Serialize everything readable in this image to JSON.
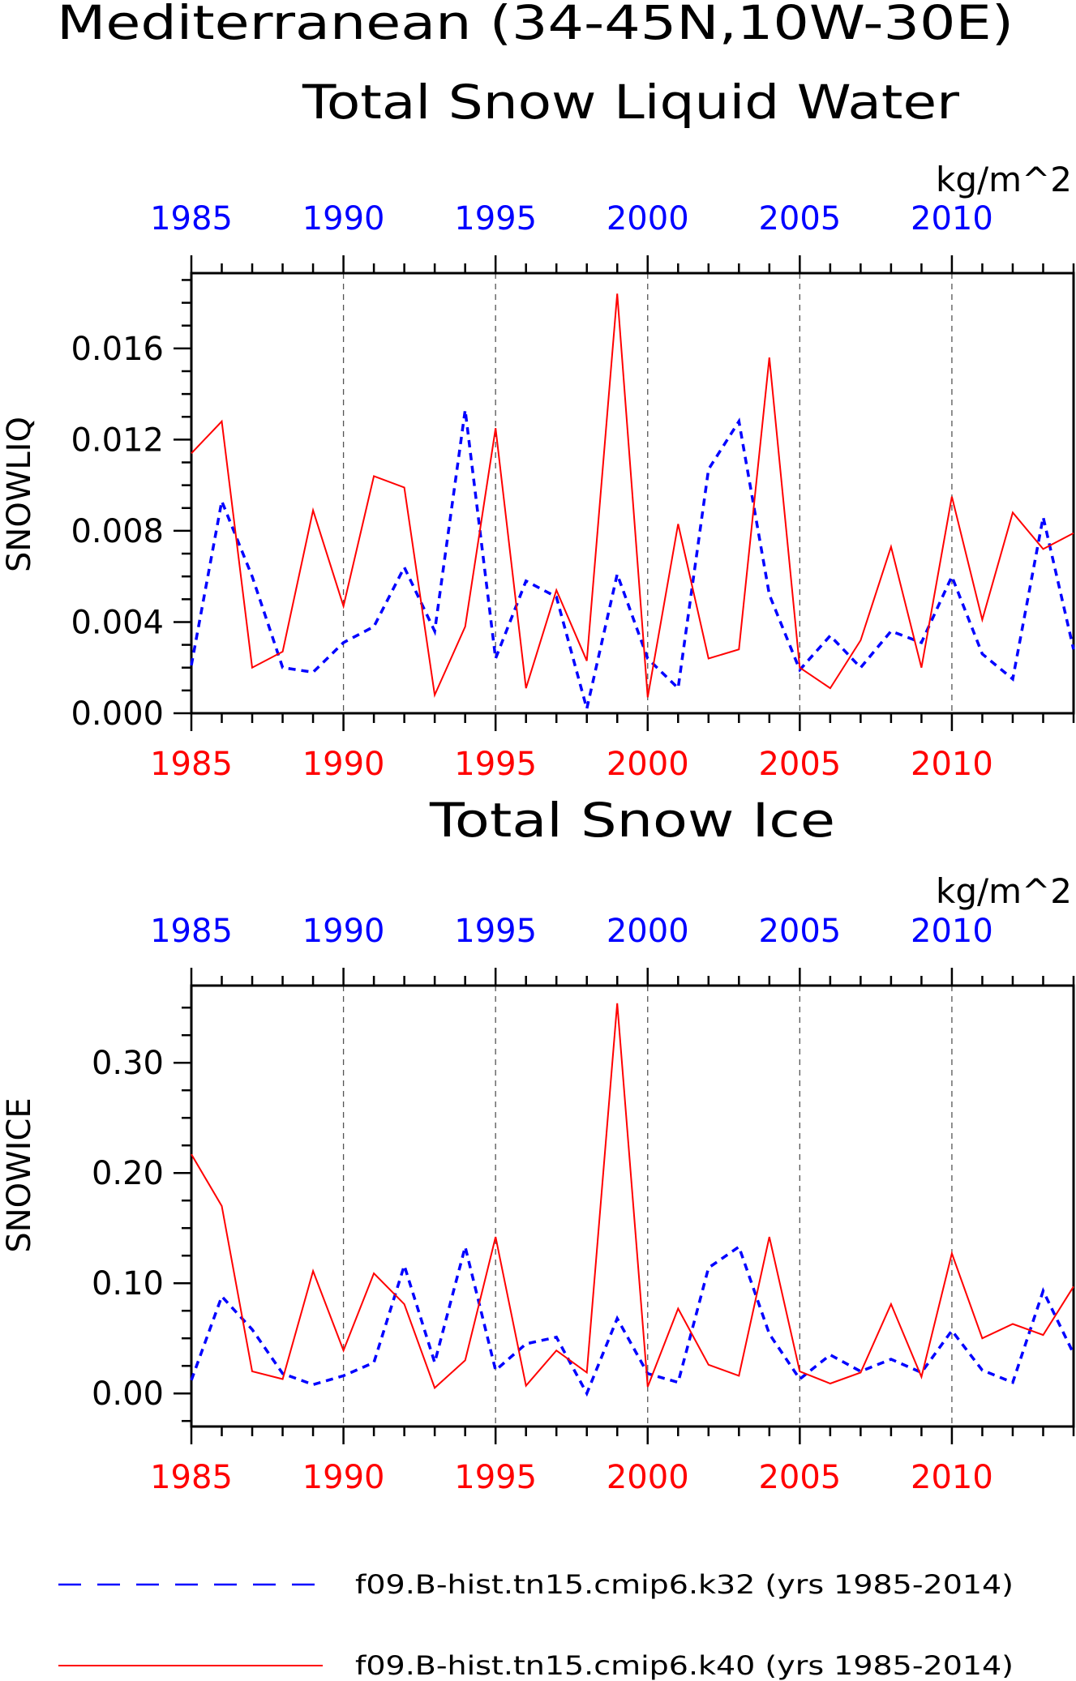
{
  "header": {
    "title_line1": "Mediterranean (34-45N,10W-30E)"
  },
  "colors": {
    "k32": "#0000ff",
    "k40": "#ff0000",
    "axis": "#000000",
    "grid": "#555555"
  },
  "chart_data": [
    {
      "type": "line",
      "title": "Total Snow Liquid Water",
      "ylabel": "SNOWLIQ",
      "units": "kg/m^2",
      "ylim": [
        0.0,
        0.0193
      ],
      "yticks": [
        "0.000",
        "0.004",
        "0.008",
        "0.012",
        "0.016"
      ],
      "ytick_values": [
        0.0,
        0.004,
        0.008,
        0.012,
        0.016
      ],
      "xlim": [
        1985,
        2014
      ],
      "xticks": [
        "1985",
        "1990",
        "1995",
        "2000",
        "2005",
        "2010"
      ],
      "xtick_values": [
        1985,
        1990,
        1995,
        2000,
        2005,
        2010
      ],
      "grid": "vertical dashed at major ticks",
      "x": [
        1985,
        1986,
        1987,
        1988,
        1989,
        1990,
        1991,
        1992,
        1993,
        1994,
        1995,
        1996,
        1997,
        1998,
        1999,
        2000,
        2001,
        2002,
        2003,
        2004,
        2005,
        2006,
        2007,
        2008,
        2009,
        2010,
        2011,
        2012,
        2013,
        2014
      ],
      "series": [
        {
          "name": "f09.B-hist.tn15.cmip6.k32 (yrs 1985-2014)",
          "values": [
            0.0021,
            0.0093,
            0.006,
            0.002,
            0.0018,
            0.0031,
            0.0038,
            0.0064,
            0.0036,
            0.0133,
            0.0024,
            0.0058,
            0.0051,
            0.0002,
            0.0061,
            0.0024,
            0.0011,
            0.0107,
            0.0128,
            0.0052,
            0.0019,
            0.0034,
            0.002,
            0.0036,
            0.0031,
            0.006,
            0.0026,
            0.0015,
            0.0086,
            0.0028
          ]
        },
        {
          "name": "f09.B-hist.tn15.cmip6.k40 (yrs 1985-2014)",
          "values": [
            0.0114,
            0.0128,
            0.002,
            0.0027,
            0.0089,
            0.0047,
            0.0104,
            0.0099,
            0.0008,
            0.0038,
            0.0125,
            0.0011,
            0.0054,
            0.0023,
            0.0184,
            0.0007,
            0.0083,
            0.0024,
            0.0028,
            0.0156,
            0.002,
            0.0011,
            0.0032,
            0.0073,
            0.002,
            0.0095,
            0.0041,
            0.0088,
            0.0072,
            0.0079
          ]
        }
      ]
    },
    {
      "type": "line",
      "title": "Total Snow Ice",
      "ylabel": "SNOWICE",
      "units": "kg/m^2",
      "ylim": [
        -0.03,
        0.37
      ],
      "yticks": [
        "0.00",
        "0.10",
        "0.20",
        "0.30"
      ],
      "ytick_values": [
        0.0,
        0.1,
        0.2,
        0.3
      ],
      "xlim": [
        1985,
        2014
      ],
      "xticks": [
        "1985",
        "1990",
        "1995",
        "2000",
        "2005",
        "2010"
      ],
      "xtick_values": [
        1985,
        1990,
        1995,
        2000,
        2005,
        2010
      ],
      "grid": "vertical dashed at major ticks",
      "x": [
        1985,
        1986,
        1987,
        1988,
        1989,
        1990,
        1991,
        1992,
        1993,
        1994,
        1995,
        1996,
        1997,
        1998,
        1999,
        2000,
        2001,
        2002,
        2003,
        2004,
        2005,
        2006,
        2007,
        2008,
        2009,
        2010,
        2011,
        2012,
        2013,
        2014
      ],
      "series": [
        {
          "name": "f09.B-hist.tn15.cmip6.k32 (yrs 1985-2014)",
          "values": [
            0.012,
            0.088,
            0.058,
            0.018,
            0.008,
            0.016,
            0.028,
            0.116,
            0.028,
            0.133,
            0.021,
            0.045,
            0.051,
            0.0,
            0.068,
            0.018,
            0.01,
            0.114,
            0.133,
            0.054,
            0.013,
            0.035,
            0.02,
            0.031,
            0.019,
            0.057,
            0.021,
            0.01,
            0.093,
            0.036
          ]
        },
        {
          "name": "f09.B-hist.tn15.cmip6.k40 (yrs 1985-2014)",
          "values": [
            0.217,
            0.17,
            0.02,
            0.013,
            0.111,
            0.039,
            0.109,
            0.081,
            0.005,
            0.03,
            0.142,
            0.007,
            0.039,
            0.019,
            0.354,
            0.006,
            0.077,
            0.026,
            0.016,
            0.142,
            0.02,
            0.009,
            0.019,
            0.081,
            0.015,
            0.127,
            0.05,
            0.063,
            0.053,
            0.097
          ]
        }
      ]
    }
  ],
  "legend": [
    {
      "label": "f09.B-hist.tn15.cmip6.k32 (yrs 1985-2014)",
      "style": "dashed",
      "color": "#0000ff"
    },
    {
      "label": "f09.B-hist.tn15.cmip6.k40 (yrs 1985-2014)",
      "style": "solid",
      "color": "#ff0000"
    }
  ]
}
